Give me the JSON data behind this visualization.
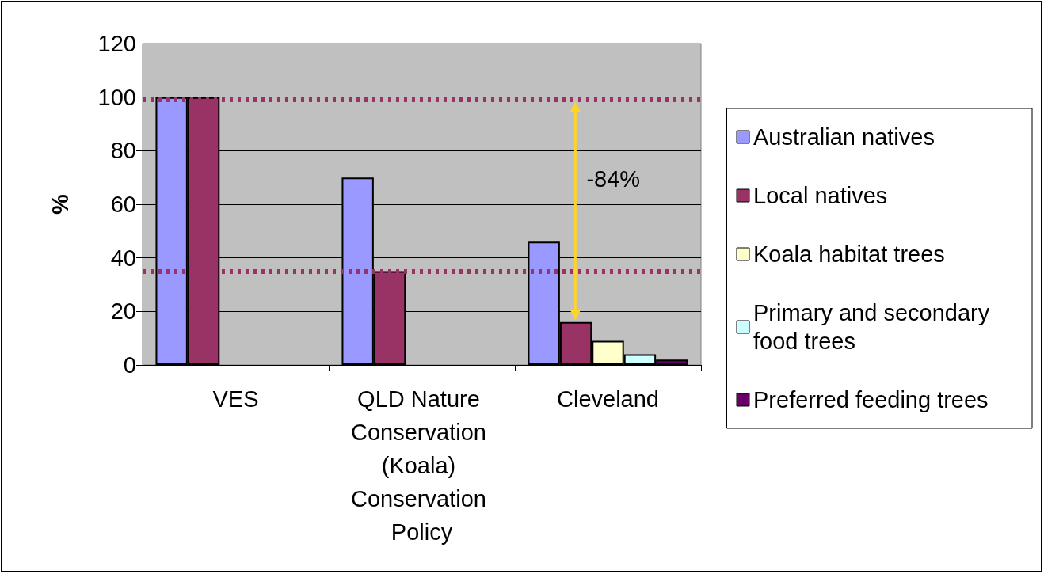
{
  "chart_data": {
    "type": "bar",
    "ylabel": "%",
    "categories": [
      "VES",
      "QLD Nature Conservation (Koala) Conservation Policy",
      "Cleveland"
    ],
    "series": [
      {
        "name": "Australian natives",
        "color": "#9999ff",
        "values": [
          100,
          70,
          46
        ]
      },
      {
        "name": "Local natives",
        "color": "#993366",
        "values": [
          100,
          35,
          16
        ]
      },
      {
        "name": "Koala habitat trees",
        "color": "#ffffcc",
        "values": [
          null,
          null,
          9
        ]
      },
      {
        "name": "Primary and secondary food trees",
        "color": "#ccffff",
        "values": [
          null,
          null,
          4
        ]
      },
      {
        "name": "Preferred feeding trees",
        "color": "#660066",
        "values": [
          null,
          null,
          2
        ]
      }
    ],
    "ylim": [
      0,
      120
    ],
    "yticks": [
      0,
      20,
      40,
      60,
      80,
      100,
      120
    ],
    "grid": "y",
    "legend": "right",
    "ref_lines": [
      {
        "axis": "y",
        "value": 99,
        "color": "#993366",
        "line_style": "dotted"
      },
      {
        "axis": "y",
        "value": 35,
        "color": "#993366",
        "line_style": "dotted"
      }
    ],
    "annotations": [
      "-84%"
    ]
  }
}
